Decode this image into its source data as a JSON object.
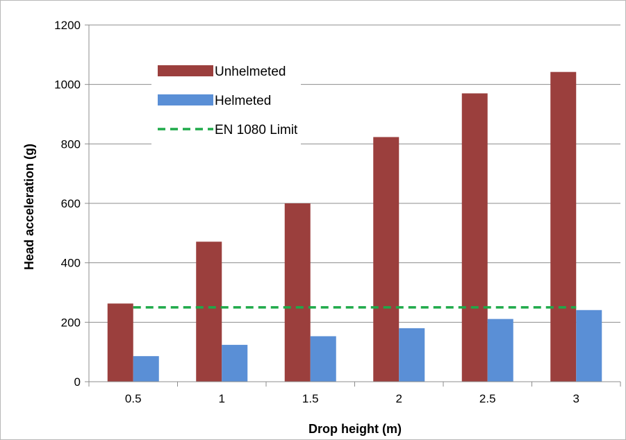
{
  "chart_data": {
    "type": "bar",
    "title": "",
    "xlabel": "Drop height (m)",
    "ylabel": "Head acceleration (g)",
    "categories": [
      "0.5",
      "1",
      "1.5",
      "2",
      "2.5",
      "3"
    ],
    "series": [
      {
        "name": "Unhelmeted",
        "color": "#9b3f3d",
        "values": [
          263,
          471,
          600,
          823,
          970,
          1042
        ]
      },
      {
        "name": "Helmeted",
        "color": "#5a8fd6",
        "values": [
          86,
          124,
          153,
          180,
          211,
          241
        ]
      }
    ],
    "reference_line": {
      "name": "EN 1080 Limit",
      "value": 250,
      "color": "#1faa4a",
      "style": "dashed"
    },
    "ylim": [
      0,
      1200
    ],
    "yticks": [
      "0",
      "200",
      "400",
      "600",
      "800",
      "1000",
      "1200"
    ],
    "grid": true,
    "legend": "top-left"
  }
}
